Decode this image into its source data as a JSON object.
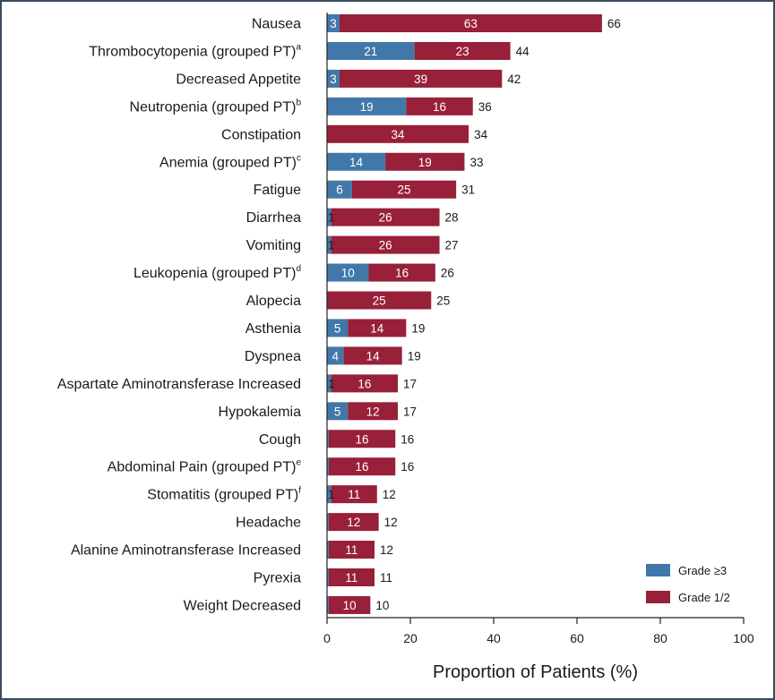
{
  "chart_data": {
    "type": "bar",
    "orientation": "horizontal",
    "stacked": true,
    "xlabel": "Proportion of Patients (%)",
    "ylabel": "",
    "xlim": [
      0,
      100
    ],
    "xticks": [
      0,
      20,
      40,
      60,
      80,
      100
    ],
    "legend_position": "bottom-right",
    "colors": {
      "Grade ≥3": "#4178a9",
      "Grade 1/2": "#982039"
    },
    "categories": [
      {
        "name": "Nausea",
        "sup": ""
      },
      {
        "name": "Thrombocytopenia (grouped PT)",
        "sup": "a"
      },
      {
        "name": "Decreased Appetite",
        "sup": ""
      },
      {
        "name": "Neutropenia (grouped PT)",
        "sup": "b"
      },
      {
        "name": "Constipation",
        "sup": ""
      },
      {
        "name": "Anemia (grouped PT)",
        "sup": "c"
      },
      {
        "name": "Fatigue",
        "sup": ""
      },
      {
        "name": "Diarrhea",
        "sup": ""
      },
      {
        "name": "Vomiting",
        "sup": ""
      },
      {
        "name": "Leukopenia (grouped PT)",
        "sup": "d"
      },
      {
        "name": "Alopecia",
        "sup": ""
      },
      {
        "name": "Asthenia",
        "sup": ""
      },
      {
        "name": "Dyspnea",
        "sup": ""
      },
      {
        "name": "Aspartate Aminotransferase Increased",
        "sup": ""
      },
      {
        "name": "Hypokalemia",
        "sup": ""
      },
      {
        "name": "Cough",
        "sup": ""
      },
      {
        "name": "Abdominal Pain (grouped PT)",
        "sup": "e"
      },
      {
        "name": "Stomatitis (grouped PT)",
        "sup": "f"
      },
      {
        "name": "Headache",
        "sup": ""
      },
      {
        "name": "Alanine Aminotransferase Increased",
        "sup": ""
      },
      {
        "name": "Pyrexia",
        "sup": ""
      },
      {
        "name": "Weight Decreased",
        "sup": ""
      }
    ],
    "series": [
      {
        "name": "Grade ≥3",
        "values": [
          3,
          21,
          3,
          19,
          0,
          14,
          6,
          1,
          1,
          10,
          0,
          5,
          4,
          1,
          5,
          0.4,
          0.4,
          1,
          0.4,
          0.4,
          0.4,
          0.4
        ],
        "labels": [
          "3",
          "21",
          "3",
          "19",
          "",
          "14",
          "6",
          "1",
          "1",
          "10",
          "",
          "5",
          "4",
          "1",
          "5",
          "",
          "",
          "1",
          "",
          "",
          "",
          ""
        ]
      },
      {
        "name": "Grade 1/2",
        "values": [
          63,
          23,
          39,
          16,
          34,
          19,
          25,
          26,
          26,
          16,
          25,
          14,
          14,
          16,
          12,
          16,
          16,
          11,
          12,
          11,
          11,
          10
        ],
        "labels": [
          "63",
          "23",
          "39",
          "16",
          "34",
          "19",
          "25",
          "26",
          "26",
          "16",
          "25",
          "14",
          "14",
          "16",
          "12",
          "16",
          "16",
          "11",
          "12",
          "11",
          "11",
          "10"
        ]
      }
    ],
    "totals": [
      "66",
      "44",
      "42",
      "36",
      "34",
      "33",
      "31",
      "28",
      "27",
      "26",
      "25",
      "19",
      "19",
      "17",
      "17",
      "16",
      "16",
      "12",
      "12",
      "12",
      "11",
      "10"
    ],
    "legend": [
      {
        "label": "Grade ≥3",
        "color": "#4178a9"
      },
      {
        "label": "Grade 1/2",
        "color": "#982039"
      }
    ]
  }
}
